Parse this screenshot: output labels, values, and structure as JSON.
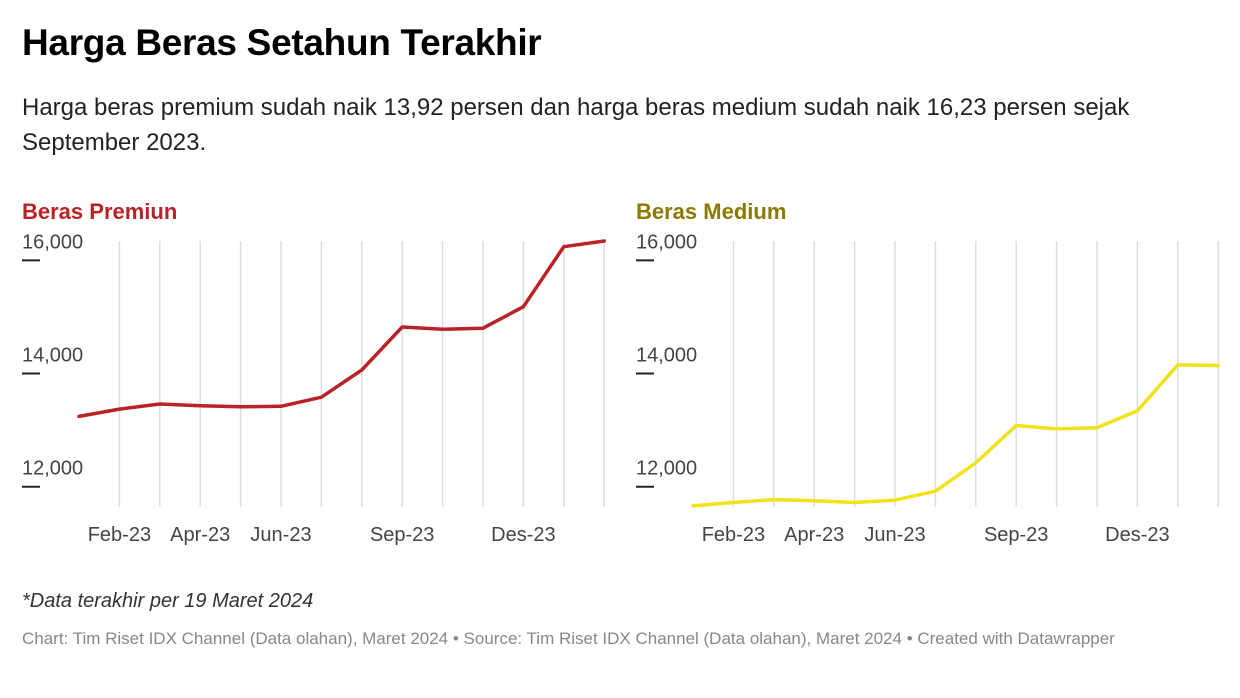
{
  "header": {
    "title": "Harga Beras Setahun Terakhir",
    "subtitle": "Harga beras premium sudah naik 13,92 persen dan harga beras medium sudah naik 16,23 persen sejak September 2023."
  },
  "note": "*Data terakhir per 19 Maret 2024",
  "footer": "Chart: Tim Riset IDX Channel (Data olahan), Maret 2024 • Source: Tim Riset IDX Channel (Data olahan), Maret 2024 • Created with Datawrapper",
  "colors": {
    "premium": "#b92327",
    "medium": "#f2e218",
    "medium_title": "#8b7a00",
    "grid": "#dddddd"
  },
  "chart_data": [
    {
      "type": "line",
      "title": "Beras Premiun",
      "x": [
        "Jan-23",
        "Feb-23",
        "Mar-23",
        "Apr-23",
        "May-23",
        "Jun-23",
        "Jul-23",
        "Aug-23",
        "Sep-23",
        "Oct-23",
        "Nov-23",
        "Des-23",
        "Jan-24",
        "Feb-24"
      ],
      "tick_labels": [
        "Feb-23",
        "Apr-23",
        "Jun-23",
        "Sep-23",
        "Des-23"
      ],
      "y_ticks": [
        "16,000",
        "14,000",
        "12,000"
      ],
      "y_tick_values": [
        16000,
        14000,
        12000
      ],
      "ylim": [
        11500,
        16200
      ],
      "grid": "vertical",
      "series": [
        {
          "values": [
            13100,
            13230,
            13320,
            13290,
            13270,
            13280,
            13440,
            13920,
            14680,
            14640,
            14660,
            15040,
            16100,
            16200
          ]
        }
      ]
    },
    {
      "type": "line",
      "title": "Beras Medium",
      "x": [
        "Jan-23",
        "Feb-23",
        "Mar-23",
        "Apr-23",
        "May-23",
        "Jun-23",
        "Jul-23",
        "Aug-23",
        "Sep-23",
        "Oct-23",
        "Nov-23",
        "Des-23",
        "Jan-24",
        "Feb-24"
      ],
      "tick_labels": [
        "Feb-23",
        "Apr-23",
        "Jun-23",
        "Sep-23",
        "Des-23"
      ],
      "y_ticks": [
        "16,000",
        "14,000",
        "12,000"
      ],
      "y_tick_values": [
        16000,
        14000,
        12000
      ],
      "ylim": [
        11500,
        16200
      ],
      "grid": "vertical",
      "series": [
        {
          "values": [
            11520,
            11580,
            11630,
            11610,
            11580,
            11620,
            11780,
            12280,
            12940,
            12880,
            12900,
            13200,
            14010,
            14000
          ]
        }
      ]
    }
  ]
}
